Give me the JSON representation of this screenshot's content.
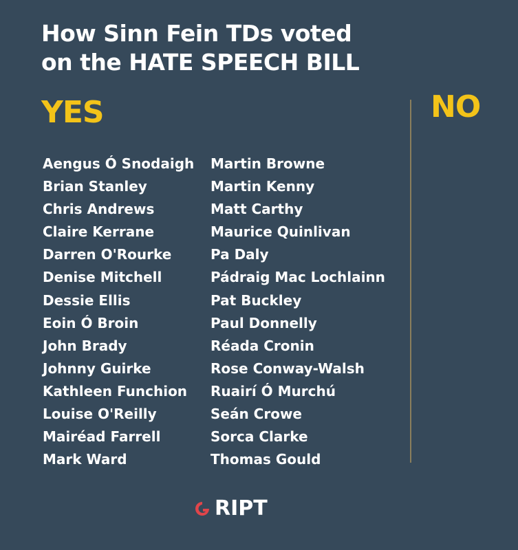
{
  "title": {
    "line1": "How Sinn Fein TDs voted",
    "line2": "on the HATE SPEECH BILL"
  },
  "yes_label": "YES",
  "no_label": "NO",
  "yes_left": [
    "Aengus Ó Snodaigh",
    "Brian Stanley",
    "Chris Andrews",
    "Claire Kerrane",
    "Darren O'Rourke",
    "Denise Mitchell",
    "Dessie Ellis",
    "Eoin Ó Broin",
    "John Brady",
    "Johnny Guirke",
    "Kathleen Funchion",
    "Louise O'Reilly",
    "Mairéad Farrell",
    "Mark Ward"
  ],
  "yes_right": [
    "Martin Browne",
    "Martin Kenny",
    "Matt Carthy",
    "Maurice Quinlivan",
    "Pa Daly",
    "Pádraig Mac Lochlainn",
    "Pat Buckley",
    "Paul Donnelly",
    "Réada Cronin",
    "Rose Conway-Walsh",
    "Ruairí Ó Murchú",
    "Seán Crowe",
    "Sorca Clarke",
    "Thomas Gould"
  ],
  "logo": {
    "text": "RIPT",
    "mark_color": "#e0454a"
  },
  "colors": {
    "background": "#36495a",
    "accent": "#f3c319"
  }
}
